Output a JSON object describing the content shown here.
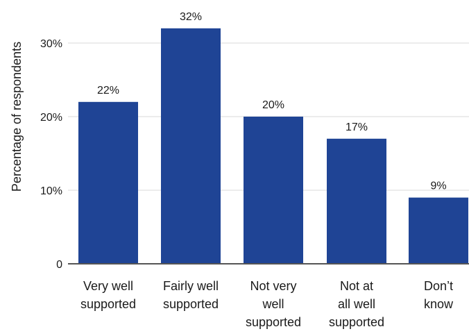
{
  "chart_data": {
    "type": "bar",
    "categories": [
      [
        "Very well",
        "supported"
      ],
      [
        "Fairly well",
        "supported"
      ],
      [
        "Not very",
        "well",
        "supported"
      ],
      [
        "Not at",
        "all well",
        "supported"
      ],
      [
        "Don’t",
        "know"
      ]
    ],
    "values": [
      22,
      32,
      20,
      17,
      9
    ],
    "data_labels": [
      "22%",
      "32%",
      "20%",
      "17%",
      "9%"
    ],
    "ylabel": "Percentage of respondents",
    "ylim": [
      0,
      33
    ],
    "yticks": [
      0,
      10,
      20,
      30
    ],
    "ytick_labels": [
      "0",
      "10%",
      "20%",
      "30%"
    ],
    "grid": true,
    "bar_color": "#1f4495",
    "grid_color": "#d9d9d9",
    "axis_color": "#555555"
  }
}
